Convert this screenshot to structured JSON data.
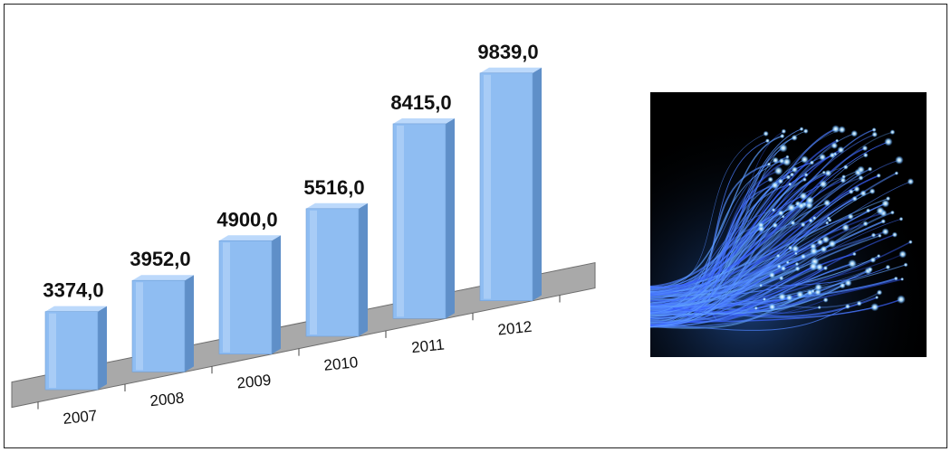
{
  "chart_data": {
    "type": "bar",
    "categories": [
      "2007",
      "2008",
      "2009",
      "2010",
      "2011",
      "2012"
    ],
    "values": [
      3374.0,
      3952.0,
      4900.0,
      5516.0,
      8415.0,
      9839.0
    ],
    "data_labels": [
      "3374,0",
      "3952,0",
      "4900,0",
      "5516,0",
      "8415,0",
      "9839,0"
    ],
    "title": "",
    "xlabel": "",
    "ylabel": "",
    "style": "3d",
    "legend": "none",
    "grid": false
  },
  "colors": {
    "bar_front": "#8fbdf2",
    "bar_side": "#5f8fc8",
    "bar_top": "#bcd9fb",
    "floor": "#a9a9a9",
    "frame": "#202020"
  },
  "image": {
    "icon": "fiber-optic-cable-image"
  }
}
